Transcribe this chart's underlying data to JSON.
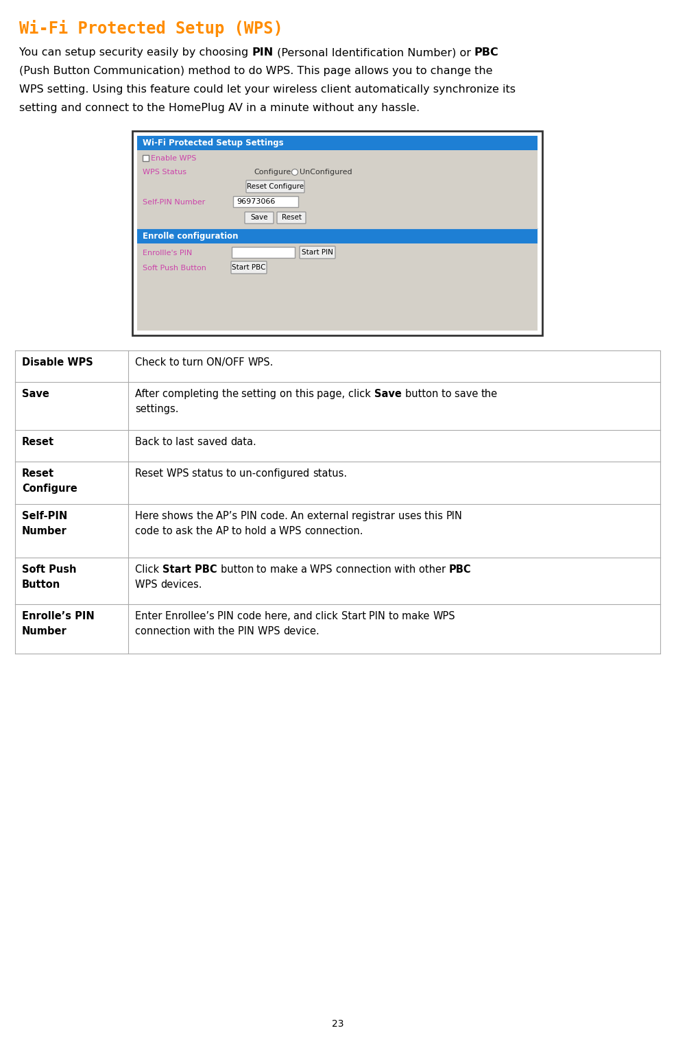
{
  "title": "Wi-Fi Protected Setup (WPS)",
  "title_color": "#FF8C00",
  "bg_color": "#ffffff",
  "page_number": "23",
  "screenshot": {
    "outer_border_color": "#555555",
    "inner_bg": "#d4d0c8",
    "header1_bg": "#1e7fd4",
    "header1_text": "Wi-Fi Protected Setup Settings",
    "header1_text_color": "#ffffff",
    "checkbox_label": "Enable WPS",
    "checkbox_label_color": "#cc44aa",
    "wps_status_label": "WPS Status",
    "wps_status_label_color": "#cc44aa",
    "configured_text": "Configured",
    "unconfigured_text": "UnConfigured",
    "reset_configure_btn": "Reset Configure",
    "self_pin_label": "Self-PIN Number",
    "self_pin_label_color": "#cc44aa",
    "self_pin_value": "96973066",
    "save_btn": "Save",
    "reset_btn": "Reset",
    "header2_bg": "#1e7fd4",
    "header2_text": "Enrolle configuration",
    "header2_text_color": "#ffffff",
    "enrollee_pin_label": "Enrollle's PIN",
    "enrollee_pin_label_color": "#cc44aa",
    "start_pin_btn": "Start PIN",
    "soft_push_label": "Soft Push Button",
    "soft_push_label_color": "#cc44aa",
    "start_pbc_btn": "Start PBC"
  },
  "table": {
    "border_color": "#aaaaaa",
    "rows": [
      {
        "label": "Disable WPS",
        "desc_lines": [
          "Check to turn ON/OFF WPS."
        ],
        "desc_bold_words": []
      },
      {
        "label": "Save",
        "desc_lines": [
          "After completing the setting on this page, click Save button to save the",
          "settings."
        ],
        "desc_bold_words": [
          "Save"
        ]
      },
      {
        "label": "Reset",
        "desc_lines": [
          "Back to last saved data."
        ],
        "desc_bold_words": []
      },
      {
        "label": "Reset\nConfigure",
        "desc_lines": [
          "Reset WPS status to un-configured status."
        ],
        "desc_bold_words": []
      },
      {
        "label": "Self-PIN\nNumber",
        "desc_lines": [
          "Here shows the AP’s PIN code. An external registrar uses this PIN",
          "code to ask the AP to hold a WPS connection."
        ],
        "desc_bold_words": []
      },
      {
        "label": "Soft Push\nButton",
        "desc_lines": [
          "Click Start PBC button to make a WPS connection with other PBC",
          "WPS devices."
        ],
        "desc_bold_words": [
          "Start",
          "PBC"
        ]
      },
      {
        "label": "Enrolle’s PIN\nNumber",
        "desc_lines": [
          "Enter Enrollee’s PIN code here, and click Start PIN to make WPS",
          "connection with the PIN WPS device."
        ],
        "desc_bold_words": []
      }
    ]
  }
}
